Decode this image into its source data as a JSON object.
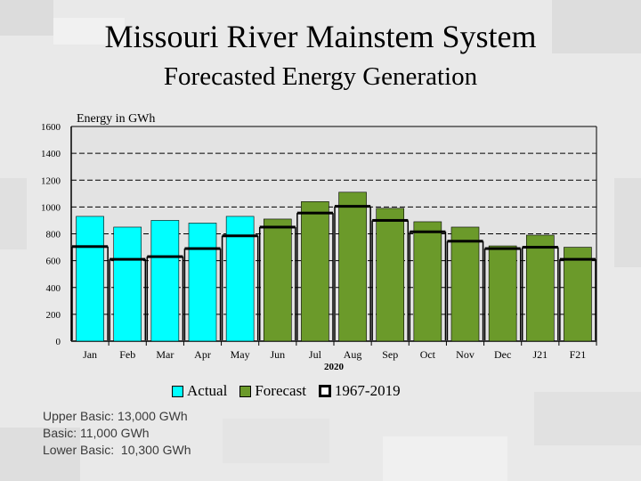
{
  "title": "Missouri River Mainstem System",
  "subtitle": "Forecasted Energy Generation",
  "colors": {
    "actual": "#00ffff",
    "forecast": "#6b9a2a",
    "historical": "#000000"
  },
  "chart_data": {
    "type": "bar",
    "ylabel": "Energy in GWh",
    "ylim": [
      0,
      1600
    ],
    "yticks": [
      0,
      200,
      400,
      600,
      800,
      1000,
      1200,
      1400,
      1600
    ],
    "grid": true,
    "categories": [
      "Jan",
      "Feb",
      "Mar",
      "Apr",
      "May",
      "Jun",
      "Jul",
      "Aug",
      "Sep",
      "Oct",
      "Nov",
      "Dec",
      "J21",
      "F21"
    ],
    "year_label": "2020",
    "series": [
      {
        "name": "Actual",
        "values": [
          930,
          850,
          900,
          880,
          930,
          null,
          null,
          null,
          null,
          null,
          null,
          null,
          null,
          null
        ]
      },
      {
        "name": "Forecast",
        "values": [
          null,
          null,
          null,
          null,
          null,
          910,
          1040,
          1110,
          990,
          890,
          850,
          710,
          790,
          700
        ]
      },
      {
        "name": "1967-2019",
        "values": [
          705,
          610,
          630,
          690,
          785,
          850,
          955,
          1005,
          900,
          815,
          745,
          690,
          700,
          610
        ]
      }
    ]
  },
  "legend": {
    "actual": "Actual",
    "forecast": "Forecast",
    "historical": "1967-2019"
  },
  "basics": {
    "upper": "Upper Basic: 13,000 GWh",
    "basic": "Basic: 11,000 GWh",
    "lower": "Lower Basic:  10,300 GWh"
  }
}
